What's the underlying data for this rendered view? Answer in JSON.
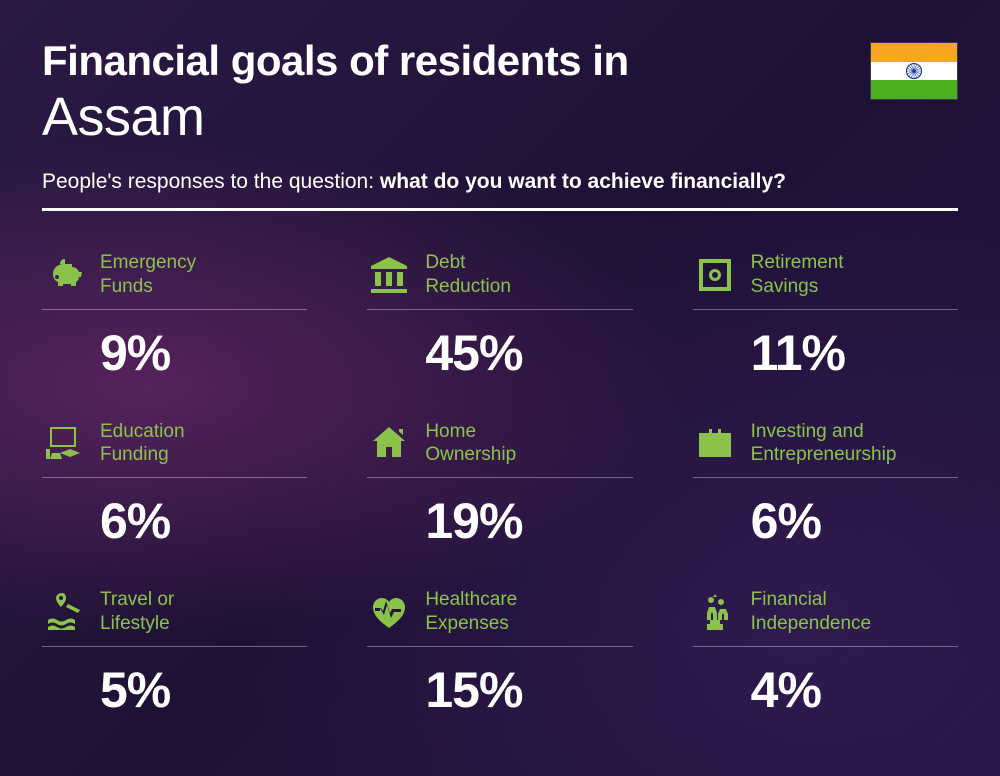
{
  "header": {
    "title_prefix": "Financial goals of residents in",
    "title_location": "Assam",
    "subtitle_lead": "People's responses to the question: ",
    "subtitle_bold": "what do you want to achieve financially?"
  },
  "flag": {
    "top_color": "#f5a623",
    "mid_color": "#ffffff",
    "bottom_color": "#4caf1f",
    "chakra_color": "#1a3a9c"
  },
  "accent_color": "#8bc34a",
  "text_color": "#ffffff",
  "items": [
    {
      "label_l1": "Emergency",
      "label_l2": "Funds",
      "value": "9%",
      "icon": "piggy"
    },
    {
      "label_l1": "Debt",
      "label_l2": "Reduction",
      "value": "45%",
      "icon": "bank"
    },
    {
      "label_l1": "Retirement",
      "label_l2": "Savings",
      "value": "11%",
      "icon": "safe"
    },
    {
      "label_l1": "Education",
      "label_l2": "Funding",
      "value": "6%",
      "icon": "education"
    },
    {
      "label_l1": "Home",
      "label_l2": "Ownership",
      "value": "19%",
      "icon": "home"
    },
    {
      "label_l1": "Investing and",
      "label_l2": "Entrepreneurship",
      "value": "6%",
      "icon": "briefcase"
    },
    {
      "label_l1": "Travel or",
      "label_l2": "Lifestyle",
      "value": "5%",
      "icon": "travel"
    },
    {
      "label_l1": "Healthcare",
      "label_l2": "Expenses",
      "value": "15%",
      "icon": "health"
    },
    {
      "label_l1": "Financial",
      "label_l2": "Independence",
      "value": "4%",
      "icon": "independence"
    }
  ]
}
